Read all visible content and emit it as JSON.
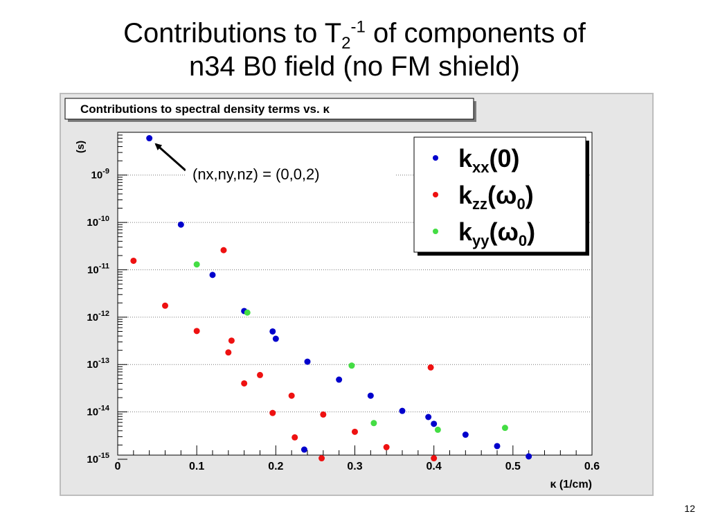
{
  "slide": {
    "title_line1_pre": "Contributions to T",
    "title_sub": "2",
    "title_sup": "-1",
    "title_line1_post": " of components of",
    "title_line2": "n34 B0 field (no FM shield)",
    "page_number": "12"
  },
  "chart_data": {
    "type": "scatter",
    "title": "Contributions to spectral density terms vs. κ",
    "xlabel": "κ (1/cm)",
    "ylabel": "(s)",
    "y_scale": "log",
    "xlim": [
      0,
      0.6
    ],
    "ylim": [
      1e-15,
      8e-09
    ],
    "grid": "horizontal dotted at decades",
    "legend_placement": "top-right",
    "x_ticks": [
      "0",
      "0.1",
      "0.2",
      "0.3",
      "0.4",
      "0.5",
      "0.6"
    ],
    "y_ticks": [
      {
        "base": "10",
        "exp": "-15",
        "value": 1e-15
      },
      {
        "base": "10",
        "exp": "-14",
        "value": 1e-14
      },
      {
        "base": "10",
        "exp": "-13",
        "value": 1e-13
      },
      {
        "base": "10",
        "exp": "-12",
        "value": 1e-12
      },
      {
        "base": "10",
        "exp": "-11",
        "value": 1e-11
      },
      {
        "base": "10",
        "exp": "-10",
        "value": 1e-10
      },
      {
        "base": "10",
        "exp": "-9",
        "value": 1e-09
      }
    ],
    "annotation": {
      "text": "(nx,ny,nz) = (0,0,2)",
      "points_to": [
        0.04,
        6e-09
      ]
    },
    "series": [
      {
        "name": "kxx(0)",
        "label_main": "k",
        "label_sub": "xx",
        "label_tail": "(0)",
        "color": "#0000cc",
        "points": [
          [
            0.04,
            6e-09
          ],
          [
            0.08,
            9e-11
          ],
          [
            0.12,
            7.8e-12
          ],
          [
            0.16,
            1.35e-12
          ],
          [
            0.196,
            5e-13
          ],
          [
            0.2,
            3.5e-13
          ],
          [
            0.24,
            1.15e-13
          ],
          [
            0.28,
            4.8e-14
          ],
          [
            0.32,
            2.2e-14
          ],
          [
            0.36,
            1.05e-14
          ],
          [
            0.393,
            7.8e-15
          ],
          [
            0.4,
            5.6e-15
          ],
          [
            0.44,
            3.3e-15
          ],
          [
            0.48,
            1.9e-15
          ],
          [
            0.52,
            1.15e-15
          ],
          [
            0.236,
            1.6e-15
          ]
        ]
      },
      {
        "name": "kzz(ω0)",
        "label_main": "k",
        "label_sub": "zz",
        "label_tail": "(ω",
        "label_tail_sub": "0",
        "label_end": ")",
        "color": "#ee1111",
        "points": [
          [
            0.02,
            1.55e-11
          ],
          [
            0.06,
            1.75e-12
          ],
          [
            0.1,
            5.1e-13
          ],
          [
            0.134,
            2.6e-11
          ],
          [
            0.14,
            1.8e-13
          ],
          [
            0.144,
            3.2e-13
          ],
          [
            0.16,
            4e-14
          ],
          [
            0.18,
            6e-14
          ],
          [
            0.196,
            9.5e-15
          ],
          [
            0.22,
            2.2e-14
          ],
          [
            0.224,
            2.9e-15
          ],
          [
            0.26,
            8.8e-15
          ],
          [
            0.258,
            1.05e-15
          ],
          [
            0.3,
            3.8e-15
          ],
          [
            0.34,
            1.8e-15
          ],
          [
            0.396,
            8.7e-14
          ],
          [
            0.4,
            1.05e-15
          ]
        ]
      },
      {
        "name": "kyy(ω0)",
        "label_main": "k",
        "label_sub": "yy",
        "label_tail": "(ω",
        "label_tail_sub": "0",
        "label_end": ")",
        "color": "#44dd44",
        "points": [
          [
            0.1,
            1.3e-11
          ],
          [
            0.164,
            1.25e-12
          ],
          [
            0.296,
            9.5e-14
          ],
          [
            0.324,
            5.8e-15
          ],
          [
            0.405,
            4.2e-15
          ],
          [
            0.49,
            4.6e-15
          ]
        ]
      }
    ]
  }
}
